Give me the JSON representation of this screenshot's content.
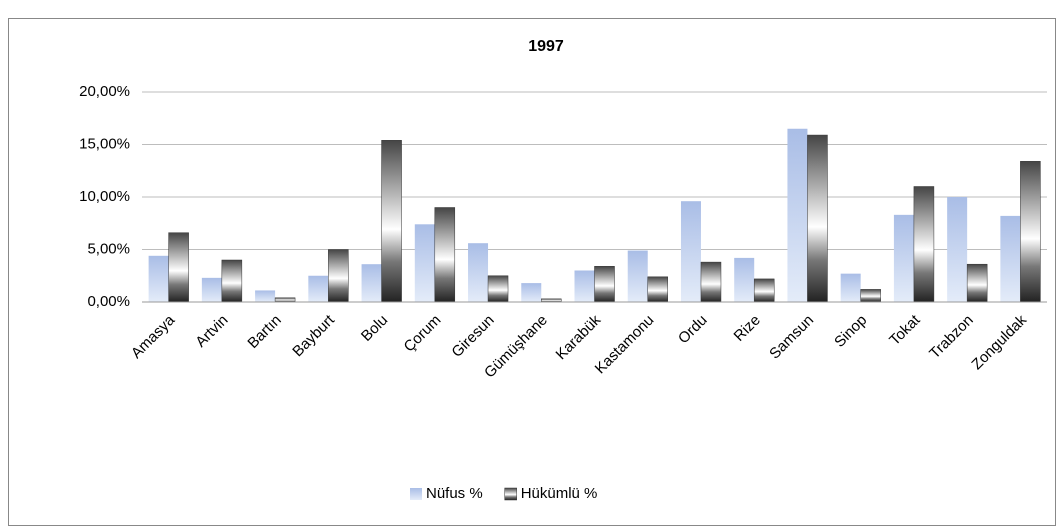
{
  "chart_data": {
    "type": "bar",
    "title": "1997",
    "categories": [
      "Amasya",
      "Artvin",
      "Bartın",
      "Bayburt",
      "Bolu",
      "Çorum",
      "Giresun",
      "Gümüşhane",
      "Karabük",
      "Kastamonu",
      "Ordu",
      "Rize",
      "Samsun",
      "Sinop",
      "Tokat",
      "Trabzon",
      "Zonguldak"
    ],
    "series": [
      {
        "name": "Nüfus %",
        "color": "#a9bde6",
        "values": [
          4.4,
          2.3,
          1.1,
          2.5,
          3.6,
          7.4,
          5.6,
          1.8,
          3.0,
          4.9,
          9.6,
          4.2,
          16.5,
          2.7,
          8.3,
          10.0,
          8.2
        ]
      },
      {
        "name": "Hükümlü %",
        "color": "#454545",
        "values": [
          6.6,
          4.0,
          0.4,
          5.0,
          15.4,
          9.0,
          2.5,
          0.3,
          3.4,
          2.4,
          3.8,
          2.2,
          15.9,
          1.2,
          11.0,
          3.6,
          13.4
        ]
      }
    ],
    "ylim": [
      0,
      20
    ],
    "yticks": [
      {
        "value": 0,
        "label": "0,00%"
      },
      {
        "value": 5,
        "label": "5,00%"
      },
      {
        "value": 10,
        "label": "10,00%"
      },
      {
        "value": 15,
        "label": "15,00%"
      },
      {
        "value": 20,
        "label": "20,00%"
      }
    ],
    "grid": true,
    "legend": "bottom"
  }
}
